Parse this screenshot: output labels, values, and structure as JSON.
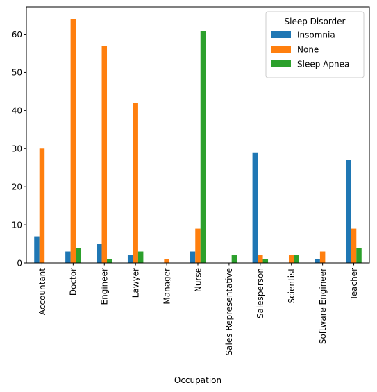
{
  "chart_data": {
    "type": "bar",
    "title": "",
    "xlabel": "Occupation",
    "ylabel": "",
    "ylim": [
      0,
      67.2
    ],
    "yticks": [
      0,
      10,
      20,
      30,
      40,
      50,
      60
    ],
    "grid": false,
    "legend": {
      "title": "Sleep Disorder",
      "placement": "top-right"
    },
    "categories": [
      "Accountant",
      "Doctor",
      "Engineer",
      "Lawyer",
      "Manager",
      "Nurse",
      "Sales Representative",
      "Salesperson",
      "Scientist",
      "Software Engineer",
      "Teacher"
    ],
    "series": [
      {
        "name": "Insomnia",
        "color": "#1f77b4",
        "values": [
          7,
          3,
          5,
          2,
          0,
          3,
          0,
          29,
          0,
          1,
          27
        ]
      },
      {
        "name": "None",
        "color": "#ff7f0e",
        "values": [
          30,
          64,
          57,
          42,
          1,
          9,
          0,
          2,
          2,
          3,
          9
        ]
      },
      {
        "name": "Sleep Apnea",
        "color": "#2ca02c",
        "values": [
          0,
          4,
          1,
          3,
          0,
          61,
          2,
          1,
          2,
          0,
          4
        ]
      }
    ]
  }
}
